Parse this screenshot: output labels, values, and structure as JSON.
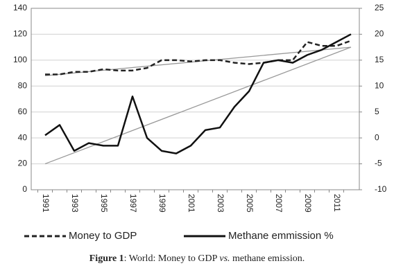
{
  "chart_data": {
    "type": "line",
    "categories": [
      "1991",
      null,
      "1993",
      null,
      "1995",
      null,
      "1997",
      null,
      "1999",
      null,
      "2001",
      null,
      "2003",
      null,
      "2005",
      null,
      "2007",
      null,
      "2009",
      null,
      "2011",
      null
    ],
    "series": [
      {
        "name": "Money to GDP",
        "color": "#222222",
        "dash": true,
        "values": [
          89,
          89,
          91,
          91,
          93,
          92,
          92,
          94,
          100,
          100,
          99,
          100,
          100,
          98,
          97,
          98,
          100,
          100,
          114,
          111,
          111,
          115
        ]
      },
      {
        "name": "Methane emmission %",
        "color": "#111111",
        "dash": false,
        "axis": "y2",
        "values": [
          0.5,
          2.5,
          -2.5,
          -1,
          -1.5,
          -1.5,
          8,
          0,
          -2.5,
          -3,
          -1.5,
          1.5,
          2,
          6,
          9,
          14.5,
          15,
          14.5,
          16,
          17,
          18.5,
          20
        ]
      }
    ],
    "trendlines": [
      {
        "color": "#999999",
        "start": 88,
        "end": 110
      },
      {
        "color": "#999999",
        "axis": "y2",
        "start": -5,
        "end": 17.5
      }
    ],
    "ylim": [
      0,
      140
    ],
    "yticks": [
      0,
      20,
      40,
      60,
      80,
      100,
      120,
      140
    ],
    "y2lim": [
      -10,
      25
    ],
    "y2ticks": [
      -10,
      -5,
      0,
      5,
      10,
      15,
      20,
      25
    ],
    "grid": true,
    "caption_label": "Figure 1",
    "caption_parts": [
      ": World: Money to GDP ",
      "vs.",
      " methane emission."
    ]
  }
}
